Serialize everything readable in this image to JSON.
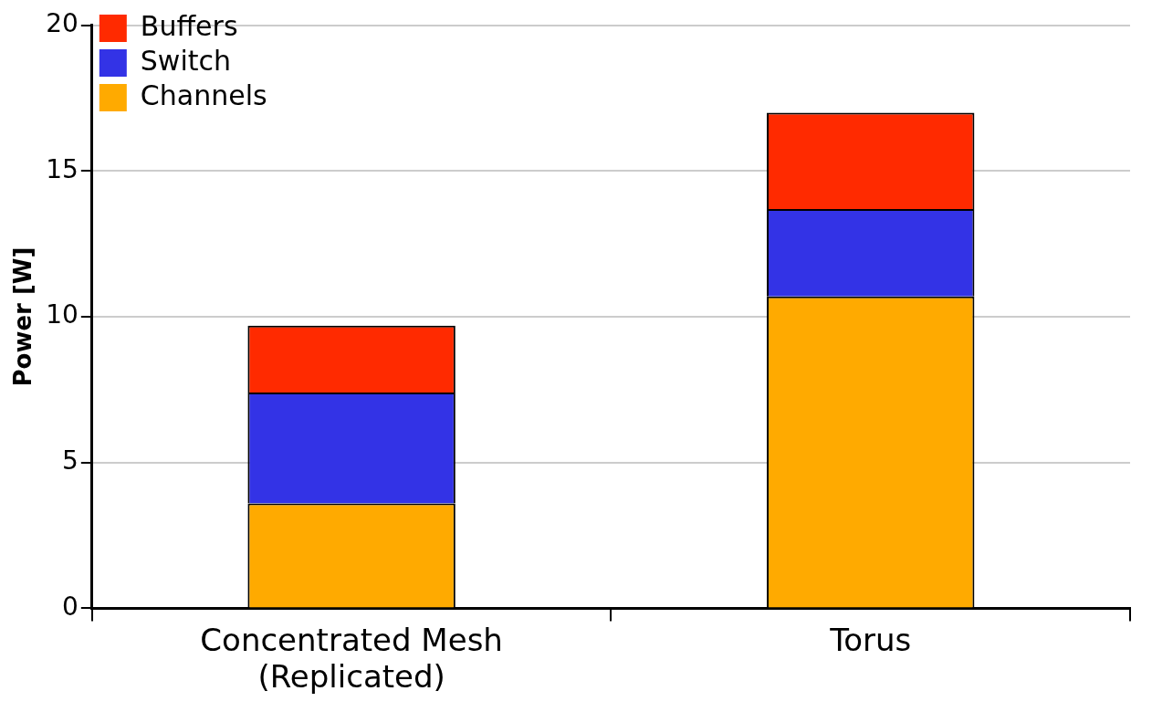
{
  "chart_data": {
    "type": "bar",
    "ylabel": "Power [W]",
    "categories": [
      "Concentrated Mesh (Replicated)",
      "Torus"
    ],
    "series": [
      {
        "name": "Channels",
        "color": "#ffaa00",
        "values": [
          3.6,
          10.7
        ]
      },
      {
        "name": "Switch",
        "color": "#3333e6",
        "values": [
          3.8,
          3.0
        ]
      },
      {
        "name": "Buffers",
        "color": "#ff2a00",
        "values": [
          2.3,
          3.3
        ]
      }
    ],
    "stacked": true,
    "ylim": [
      0,
      20
    ],
    "yticks": [
      0,
      5,
      10,
      15,
      20
    ],
    "grid": "y",
    "legend": "top left"
  }
}
